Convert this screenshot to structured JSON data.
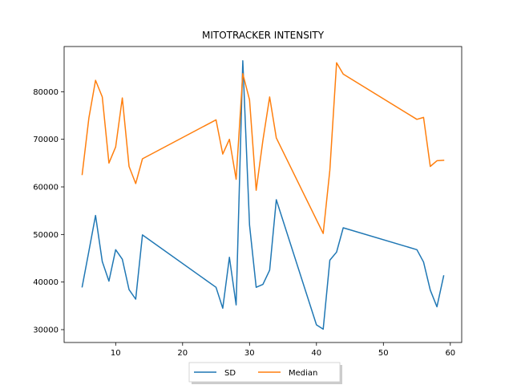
{
  "chart_data": {
    "type": "line",
    "title": "MITOTRACKER INTENSITY",
    "xlabel": "",
    "ylabel": "",
    "xlim": [
      2.3,
      61.7
    ],
    "ylim": [
      27300,
      89500
    ],
    "xticks": [
      10,
      20,
      30,
      40,
      50,
      60
    ],
    "xtick_labels": [
      "10",
      "20",
      "30",
      "40",
      "50",
      "60"
    ],
    "yticks": [
      30000,
      40000,
      50000,
      60000,
      70000,
      80000
    ],
    "ytick_labels": [
      "30000",
      "40000",
      "50000",
      "60000",
      "70000",
      "80000"
    ],
    "grid": false,
    "legend": "bottom-center",
    "series": [
      {
        "name": "SD",
        "color": "#1f77b4",
        "x": [
          5,
          6,
          7,
          8,
          9,
          10,
          11,
          12,
          13,
          14,
          25,
          26,
          27,
          28,
          29,
          30,
          31,
          32,
          33,
          34,
          40,
          41,
          42,
          43,
          44,
          55,
          56,
          57,
          58,
          59
        ],
        "y": [
          39000,
          46500,
          54000,
          44300,
          40200,
          46800,
          44800,
          38400,
          36400,
          49900,
          38900,
          34500,
          45200,
          35200,
          86500,
          52000,
          38900,
          39500,
          42500,
          57300,
          31000,
          30100,
          44600,
          46300,
          51400,
          46800,
          44200,
          38300,
          34800,
          41300
        ]
      },
      {
        "name": "Median",
        "color": "#ff7f0e",
        "x": [
          5,
          6,
          7,
          8,
          9,
          10,
          11,
          12,
          13,
          14,
          25,
          26,
          27,
          28,
          29,
          30,
          31,
          32,
          33,
          34,
          41,
          42,
          43,
          44,
          55,
          56,
          57,
          58,
          59
        ],
        "y": [
          62600,
          74500,
          82400,
          78900,
          65000,
          68400,
          78700,
          64300,
          60700,
          65900,
          74100,
          66900,
          70000,
          61600,
          83800,
          78300,
          59300,
          69800,
          78900,
          70300,
          50200,
          63500,
          86100,
          83700,
          74200,
          74600,
          64300,
          65500,
          65600
        ]
      }
    ]
  }
}
